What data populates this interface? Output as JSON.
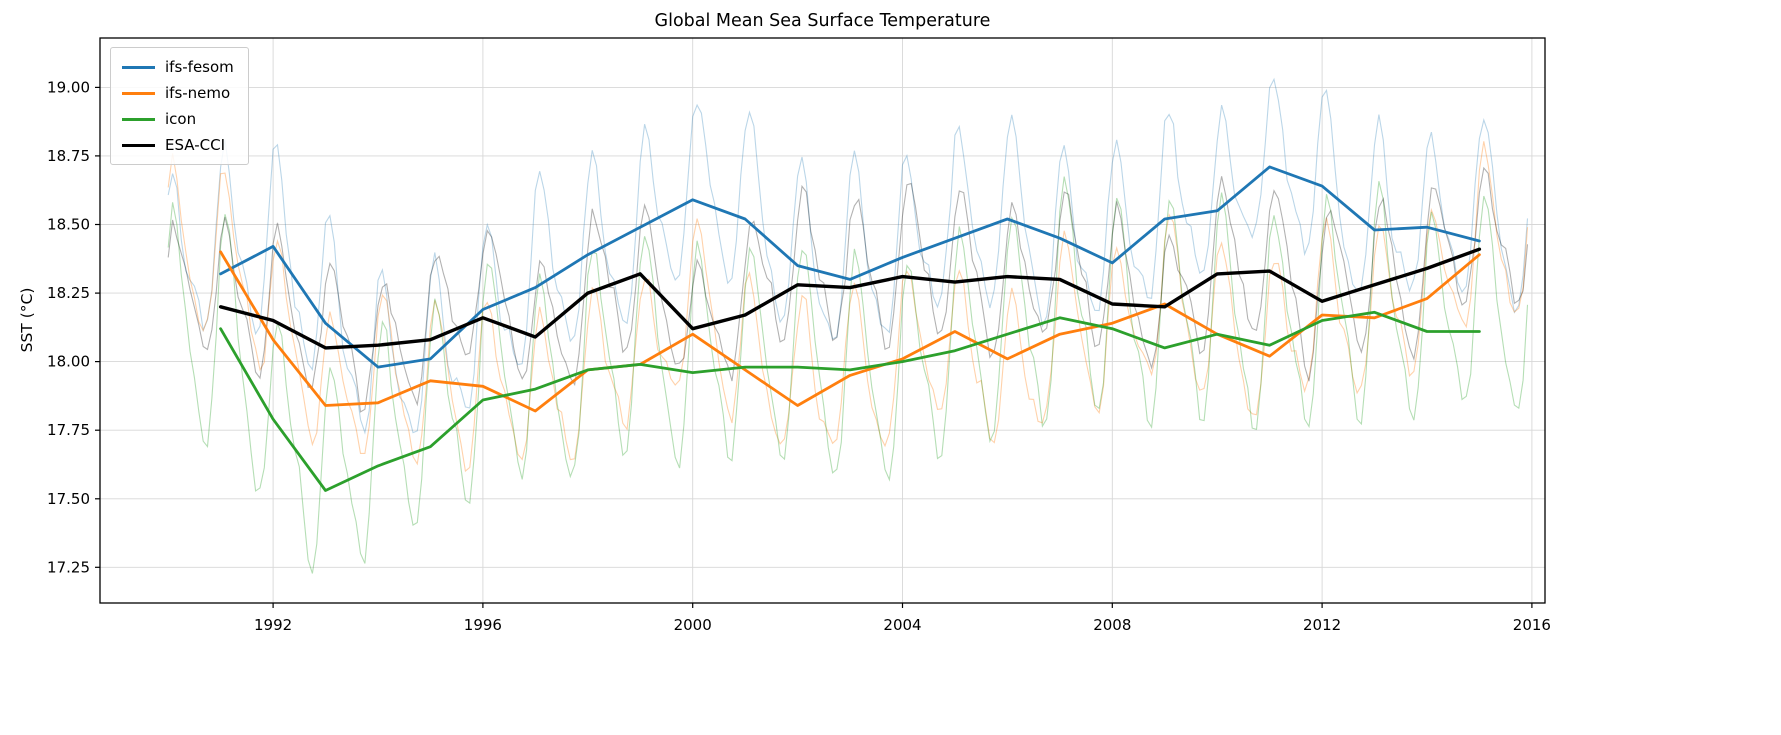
{
  "chart_data": {
    "type": "line",
    "title": "Global Mean Sea Surface Temperature",
    "xlabel": "",
    "ylabel": "SST (°C)",
    "xlim": [
      1988.7,
      2016.25
    ],
    "ylim": [
      17.12,
      19.18
    ],
    "xticks": [
      1992,
      1996,
      2000,
      2004,
      2008,
      2012,
      2016
    ],
    "yticks": [
      17.25,
      17.5,
      17.75,
      18.0,
      18.25,
      18.5,
      18.75,
      19.0
    ],
    "ytick_labels": [
      "17.25",
      "17.50",
      "17.75",
      "18.00",
      "18.25",
      "18.50",
      "18.75",
      "19.00"
    ],
    "grid": true,
    "legend_position": "upper left",
    "years": [
      1991,
      1992,
      1993,
      1994,
      1995,
      1996,
      1997,
      1998,
      1999,
      2000,
      2001,
      2002,
      2003,
      2004,
      2005,
      2006,
      2007,
      2008,
      2009,
      2010,
      2011,
      2012,
      2013,
      2014,
      2015
    ],
    "series": [
      {
        "name": "ifs-fesom",
        "color": "#1f77b4",
        "linewidth": 2.8,
        "monthly_alpha": 0.3,
        "seasonal_amplitude": 0.34,
        "values": [
          18.32,
          18.42,
          18.14,
          17.98,
          18.01,
          18.19,
          18.27,
          18.39,
          18.49,
          18.59,
          18.52,
          18.35,
          18.3,
          18.38,
          18.45,
          18.52,
          18.45,
          18.36,
          18.52,
          18.55,
          18.71,
          18.64,
          18.48,
          18.49,
          18.44
        ]
      },
      {
        "name": "ifs-nemo",
        "color": "#ff7f0e",
        "linewidth": 2.8,
        "monthly_alpha": 0.35,
        "seasonal_amplitude": 0.3,
        "values": [
          18.4,
          18.08,
          17.84,
          17.85,
          17.93,
          17.91,
          17.82,
          17.97,
          17.99,
          18.1,
          17.97,
          17.84,
          17.95,
          18.01,
          18.11,
          18.01,
          18.1,
          18.14,
          18.21,
          18.1,
          18.02,
          18.17,
          18.16,
          18.23,
          18.39
        ]
      },
      {
        "name": "icon",
        "color": "#2ca02c",
        "linewidth": 2.8,
        "monthly_alpha": 0.35,
        "seasonal_amplitude": 0.42,
        "values": [
          18.12,
          17.79,
          17.53,
          17.62,
          17.69,
          17.86,
          17.9,
          17.97,
          17.99,
          17.96,
          17.98,
          17.98,
          17.97,
          18.0,
          18.04,
          18.1,
          18.16,
          18.12,
          18.05,
          18.1,
          18.06,
          18.15,
          18.18,
          18.11,
          18.11
        ]
      },
      {
        "name": "ESA-CCI",
        "color": "#000000",
        "linewidth": 3.4,
        "monthly_alpha": 0.3,
        "seasonal_amplitude": 0.28,
        "values": [
          18.2,
          18.15,
          18.05,
          18.06,
          18.08,
          18.16,
          18.09,
          18.25,
          18.32,
          18.12,
          18.17,
          18.28,
          18.27,
          18.31,
          18.29,
          18.31,
          18.3,
          18.21,
          18.2,
          18.32,
          18.33,
          18.22,
          18.28,
          18.34,
          18.41
        ]
      }
    ],
    "monthly_overlay": {
      "start": 1990.0,
      "end": 2015.95,
      "note": "faint thin lines are monthly values; thick lines are annual means"
    }
  }
}
